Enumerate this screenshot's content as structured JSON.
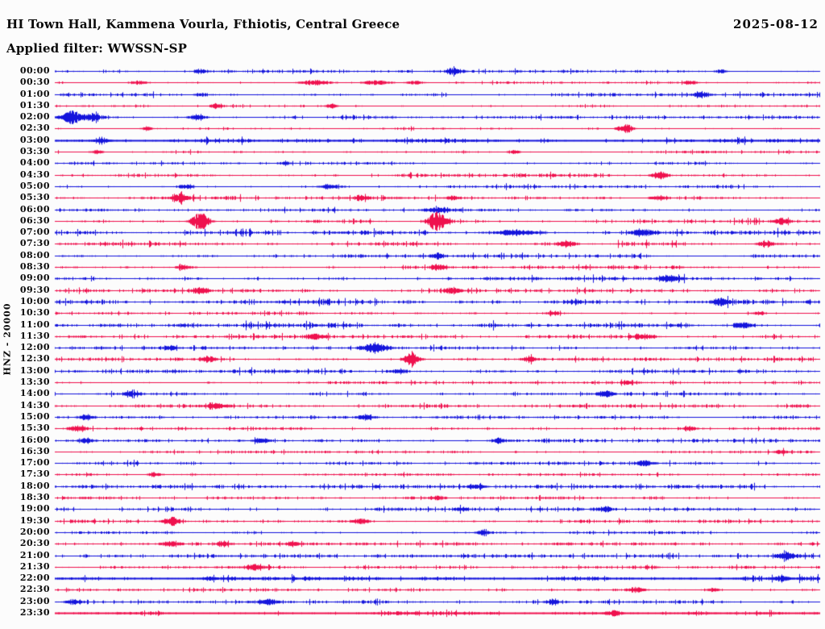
{
  "header": {
    "title": "HI Town Hall, Kammena Vourla, Fthiotis, Central Greece",
    "date": "2025-08-12",
    "filter_line": "Applied filter: WWSSN-SP"
  },
  "y_axis": {
    "scale_label": "HNZ - 20000"
  },
  "chart_data": {
    "type": "line",
    "subtype": "helicorder-seismogram",
    "title": "HI Town Hall, Kammena Vourla, Fthiotis, Central Greece",
    "date": "2025-08-12",
    "filter": "WWSSN-SP",
    "channel_scale": "HNZ - 20000",
    "minutes_per_row": 30,
    "x_range_minutes": [
      0,
      30
    ],
    "legend": "off",
    "grid": "off",
    "colors": {
      "blue": "#1414dc",
      "red": "#ef114e"
    },
    "rows": [
      {
        "time": "00:00",
        "color": "blue",
        "noise": 1.0,
        "events": [
          [
            0.19,
            2.5,
            6
          ],
          [
            0.52,
            4.5,
            6
          ],
          [
            0.87,
            2.5,
            5
          ]
        ]
      },
      {
        "time": "00:30",
        "color": "red",
        "noise": 0.7,
        "events": [
          [
            0.11,
            2.5,
            8
          ],
          [
            0.34,
            3.5,
            14
          ],
          [
            0.42,
            3.0,
            12
          ],
          [
            0.47,
            2.5,
            8
          ],
          [
            0.83,
            2.5,
            5
          ]
        ]
      },
      {
        "time": "01:00",
        "color": "blue",
        "noise": 1.1,
        "events": [
          [
            0.19,
            2.5,
            5
          ],
          [
            0.845,
            3.5,
            7
          ]
        ]
      },
      {
        "time": "01:30",
        "color": "red",
        "noise": 0.8,
        "events": [
          [
            0.21,
            2.5,
            5
          ],
          [
            0.36,
            3.5,
            5
          ]
        ]
      },
      {
        "time": "02:00",
        "color": "blue",
        "noise": 1.0,
        "events": [
          [
            0.022,
            8.0,
            9
          ],
          [
            0.05,
            5.0,
            6
          ],
          [
            0.187,
            4.5,
            7
          ]
        ]
      },
      {
        "time": "02:30",
        "color": "red",
        "noise": 0.8,
        "events": [
          [
            0.12,
            2.5,
            5
          ],
          [
            0.745,
            6.0,
            7
          ]
        ]
      },
      {
        "time": "03:00",
        "color": "blue",
        "noise": 1.6,
        "thick": true,
        "events": [
          [
            0.06,
            2.5,
            8
          ]
        ]
      },
      {
        "time": "03:30",
        "color": "red",
        "noise": 0.9,
        "events": [
          [
            0.055,
            2.5,
            5
          ],
          [
            0.6,
            2.5,
            5
          ]
        ]
      },
      {
        "time": "04:00",
        "color": "blue",
        "noise": 0.9,
        "events": [
          [
            0.3,
            2.0,
            5
          ]
        ]
      },
      {
        "time": "04:30",
        "color": "red",
        "noise": 1.2,
        "events": [
          [
            0.79,
            5.0,
            7
          ]
        ]
      },
      {
        "time": "05:00",
        "color": "blue",
        "noise": 1.1,
        "events": [
          [
            0.17,
            2.5,
            7
          ],
          [
            0.36,
            3.0,
            8
          ]
        ]
      },
      {
        "time": "05:30",
        "color": "red",
        "noise": 1.2,
        "events": [
          [
            0.165,
            5.5,
            7
          ],
          [
            0.4,
            3.0,
            7
          ],
          [
            0.52,
            2.5,
            6
          ],
          [
            0.79,
            3.0,
            7
          ]
        ]
      },
      {
        "time": "06:00",
        "color": "blue",
        "noise": 1.0,
        "events": [
          [
            0.5,
            3.0,
            12
          ]
        ]
      },
      {
        "time": "06:30",
        "color": "red",
        "noise": 1.3,
        "events": [
          [
            0.19,
            11.0,
            8
          ],
          [
            0.5,
            13.0,
            8
          ],
          [
            0.95,
            4.0,
            7
          ]
        ]
      },
      {
        "time": "07:00",
        "color": "blue",
        "noise": 1.5,
        "events": [
          [
            0.6,
            3.5,
            18
          ],
          [
            0.77,
            3.5,
            12
          ]
        ]
      },
      {
        "time": "07:30",
        "color": "red",
        "noise": 1.4,
        "events": [
          [
            0.67,
            3.5,
            8
          ],
          [
            0.93,
            3.0,
            8
          ]
        ]
      },
      {
        "time": "08:00",
        "color": "blue",
        "noise": 1.1,
        "events": [
          [
            0.5,
            2.5,
            6
          ]
        ]
      },
      {
        "time": "08:30",
        "color": "red",
        "noise": 1.2,
        "events": [
          [
            0.17,
            2.5,
            7
          ],
          [
            0.5,
            3.5,
            6
          ]
        ]
      },
      {
        "time": "09:00",
        "color": "blue",
        "noise": 1.4,
        "events": [
          [
            0.8,
            3.0,
            10
          ]
        ]
      },
      {
        "time": "09:30",
        "color": "red",
        "noise": 1.2,
        "events": [
          [
            0.19,
            4.0,
            8
          ],
          [
            0.52,
            3.5,
            7
          ]
        ]
      },
      {
        "time": "10:00",
        "color": "blue",
        "noise": 1.7,
        "events": [
          [
            0.87,
            3.5,
            7
          ]
        ]
      },
      {
        "time": "10:30",
        "color": "red",
        "noise": 1.1,
        "events": [
          [
            0.65,
            2.5,
            6
          ],
          [
            0.92,
            2.5,
            6
          ]
        ]
      },
      {
        "time": "11:00",
        "color": "blue",
        "noise": 1.6,
        "events": [
          [
            0.9,
            3.5,
            8
          ]
        ]
      },
      {
        "time": "11:30",
        "color": "red",
        "noise": 1.2,
        "events": [
          [
            0.34,
            3.5,
            7
          ],
          [
            0.77,
            3.5,
            9
          ]
        ]
      },
      {
        "time": "12:00",
        "color": "blue",
        "noise": 1.1,
        "events": [
          [
            0.15,
            2.5,
            6
          ],
          [
            0.417,
            5.5,
            10
          ]
        ]
      },
      {
        "time": "12:30",
        "color": "red",
        "noise": 1.2,
        "events": [
          [
            0.2,
            3.5,
            6
          ],
          [
            0.466,
            11.0,
            6
          ],
          [
            0.62,
            3.5,
            6
          ]
        ]
      },
      {
        "time": "13:00",
        "color": "blue",
        "noise": 1.3,
        "events": [
          [
            0.45,
            2.5,
            8
          ]
        ]
      },
      {
        "time": "13:30",
        "color": "red",
        "noise": 1.0,
        "events": [
          [
            0.75,
            2.5,
            6
          ]
        ]
      },
      {
        "time": "14:00",
        "color": "blue",
        "noise": 1.0,
        "events": [
          [
            0.1,
            3.0,
            7
          ],
          [
            0.72,
            3.5,
            7
          ]
        ]
      },
      {
        "time": "14:30",
        "color": "red",
        "noise": 1.2,
        "events": [
          [
            0.21,
            3.0,
            10
          ]
        ]
      },
      {
        "time": "15:00",
        "color": "blue",
        "noise": 1.0,
        "events": [
          [
            0.04,
            3.0,
            6
          ],
          [
            0.405,
            3.5,
            7
          ]
        ]
      },
      {
        "time": "15:30",
        "color": "red",
        "noise": 1.0,
        "events": [
          [
            0.03,
            3.5,
            7
          ],
          [
            0.83,
            2.5,
            6
          ]
        ]
      },
      {
        "time": "16:00",
        "color": "blue",
        "noise": 1.0,
        "events": [
          [
            0.04,
            2.5,
            6
          ],
          [
            0.27,
            2.5,
            7
          ],
          [
            0.58,
            3.5,
            7
          ]
        ]
      },
      {
        "time": "16:30",
        "color": "red",
        "noise": 0.9,
        "events": [
          [
            0.95,
            2.5,
            6
          ]
        ]
      },
      {
        "time": "17:00",
        "color": "blue",
        "noise": 1.1,
        "events": [
          [
            0.77,
            3.5,
            7
          ]
        ]
      },
      {
        "time": "17:30",
        "color": "red",
        "noise": 0.9,
        "events": [
          [
            0.13,
            2.5,
            6
          ]
        ]
      },
      {
        "time": "18:00",
        "color": "blue",
        "noise": 1.2,
        "events": [
          [
            0.55,
            2.5,
            8
          ]
        ]
      },
      {
        "time": "18:30",
        "color": "red",
        "noise": 1.0,
        "events": [
          [
            0.5,
            2.5,
            6
          ]
        ]
      },
      {
        "time": "19:00",
        "color": "blue",
        "noise": 1.1,
        "events": [
          [
            0.53,
            2.5,
            5
          ],
          [
            0.72,
            3.5,
            6
          ]
        ]
      },
      {
        "time": "19:30",
        "color": "red",
        "noise": 1.1,
        "events": [
          [
            0.152,
            6.0,
            7
          ],
          [
            0.4,
            3.5,
            7
          ]
        ]
      },
      {
        "time": "20:00",
        "color": "blue",
        "noise": 1.0,
        "events": [
          [
            0.56,
            2.5,
            6
          ]
        ]
      },
      {
        "time": "20:30",
        "color": "red",
        "noise": 1.1,
        "events": [
          [
            0.15,
            3.5,
            8
          ],
          [
            0.22,
            2.5,
            7
          ],
          [
            0.31,
            2.5,
            6
          ]
        ]
      },
      {
        "time": "21:00",
        "color": "blue",
        "noise": 1.2,
        "events": [
          [
            0.955,
            4.5,
            8
          ]
        ]
      },
      {
        "time": "21:30",
        "color": "red",
        "noise": 1.0,
        "events": [
          [
            0.26,
            3.5,
            7
          ]
        ]
      },
      {
        "time": "22:00",
        "color": "blue",
        "noise": 1.5,
        "thick": true,
        "events": [
          [
            0.2,
            2.5,
            6
          ],
          [
            0.95,
            3.5,
            7
          ]
        ]
      },
      {
        "time": "22:30",
        "color": "red",
        "noise": 0.9,
        "events": [
          [
            0.76,
            3.5,
            7
          ],
          [
            0.86,
            2.5,
            6
          ]
        ]
      },
      {
        "time": "23:00",
        "color": "blue",
        "noise": 1.1,
        "events": [
          [
            0.025,
            3.5,
            7
          ],
          [
            0.28,
            3.5,
            8
          ],
          [
            0.65,
            2.5,
            6
          ]
        ]
      },
      {
        "time": "23:30",
        "color": "red",
        "noise": 1.4,
        "thick": true,
        "events": [
          [
            0.73,
            3.5,
            7
          ]
        ]
      }
    ]
  }
}
